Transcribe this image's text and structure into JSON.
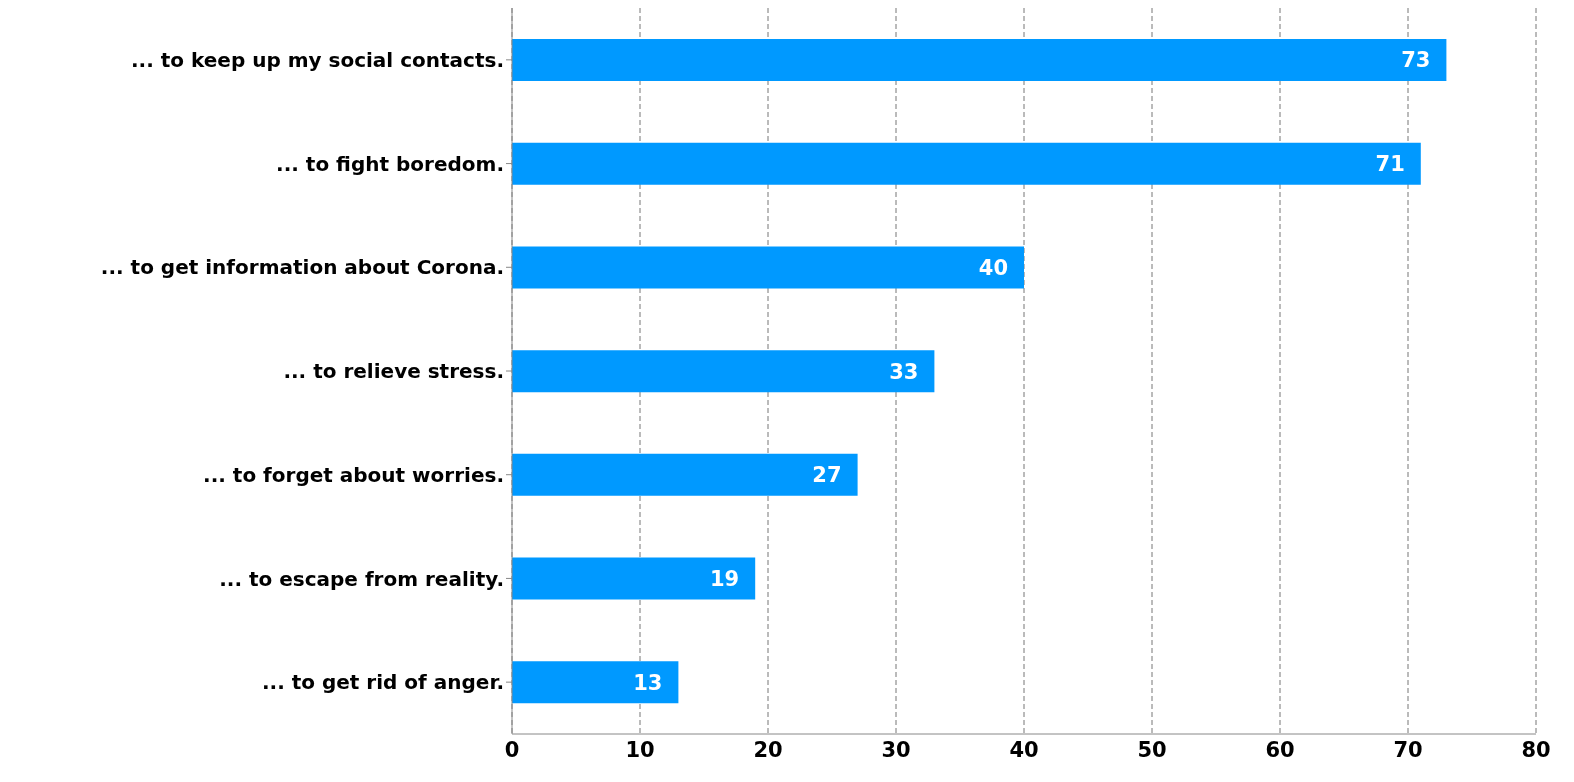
{
  "chart_data": {
    "type": "bar",
    "orientation": "horizontal",
    "categories": [
      "... to keep up my social contacts.",
      "... to fight boredom.",
      "... to get information about Corona.",
      "... to relieve stress.",
      "... to forget about worries.",
      "... to escape from reality.",
      "... to get rid of anger."
    ],
    "values": [
      73,
      71,
      40,
      33,
      27,
      19,
      13
    ],
    "color": "#0099ff",
    "xlim": [
      0,
      80
    ],
    "xticks": [
      0,
      10,
      20,
      30,
      40,
      50,
      60,
      70,
      80
    ],
    "grid": "x",
    "data_labels": true
  }
}
